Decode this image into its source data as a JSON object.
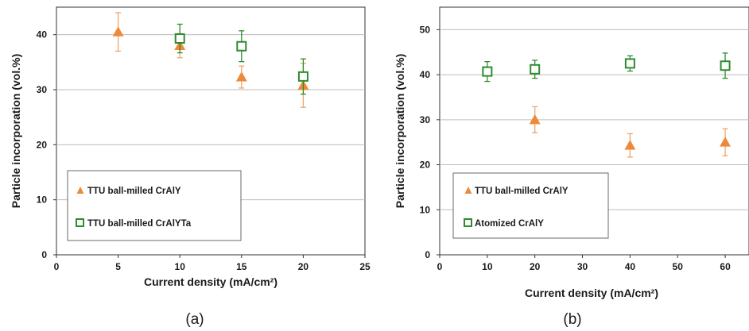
{
  "chart_data": [
    {
      "type": "scatter",
      "panel_label": "(a)",
      "xlabel": "Current density (mA/cm²)",
      "ylabel": "Particle incorporation (vol.%)",
      "xlim": [
        0,
        25
      ],
      "ylim": [
        0,
        45
      ],
      "xticks": [
        0,
        5,
        10,
        15,
        20,
        25
      ],
      "yticks": [
        0,
        10,
        20,
        30,
        40
      ],
      "grid": "horizontal",
      "legend_position": "bottom-left",
      "series": [
        {
          "name": "TTU ball-milled CrAlY",
          "marker": "triangle",
          "color": "#ED8A3A",
          "x": [
            5,
            10,
            15,
            20
          ],
          "y": [
            40.5,
            38.0,
            32.3,
            30.8
          ],
          "yerr": [
            3.5,
            2.2,
            2.0,
            4.0
          ]
        },
        {
          "name": "TTU ball-milled CrAlYTa",
          "marker": "square-open",
          "color": "#2E8B2E",
          "x": [
            10,
            15,
            20
          ],
          "y": [
            39.3,
            37.9,
            32.4
          ],
          "yerr": [
            2.6,
            2.8,
            3.2
          ]
        }
      ]
    },
    {
      "type": "scatter",
      "panel_label": "(b)",
      "xlabel": "Current density (mA/cm²)",
      "ylabel": "Particle incorporation (vol.%)",
      "xlim": [
        0,
        65
      ],
      "ylim": [
        0,
        55
      ],
      "xticks": [
        0,
        10,
        20,
        30,
        40,
        50,
        60
      ],
      "yticks": [
        0,
        10,
        20,
        30,
        40,
        50
      ],
      "grid": "horizontal",
      "legend_position": "bottom-left",
      "series": [
        {
          "name": "TTU ball-milled CrAlY",
          "marker": "triangle",
          "color": "#ED8A3A",
          "x": [
            20,
            40,
            60
          ],
          "y": [
            30.0,
            24.3,
            25.0
          ],
          "yerr": [
            2.9,
            2.6,
            3.0
          ]
        },
        {
          "name": "Atomized CrAlY",
          "marker": "square-open",
          "color": "#2E8B2E",
          "x": [
            10,
            20,
            40,
            60
          ],
          "y": [
            40.7,
            41.2,
            42.5,
            42.0
          ],
          "yerr": [
            2.2,
            2.0,
            1.7,
            2.8
          ]
        }
      ]
    }
  ]
}
